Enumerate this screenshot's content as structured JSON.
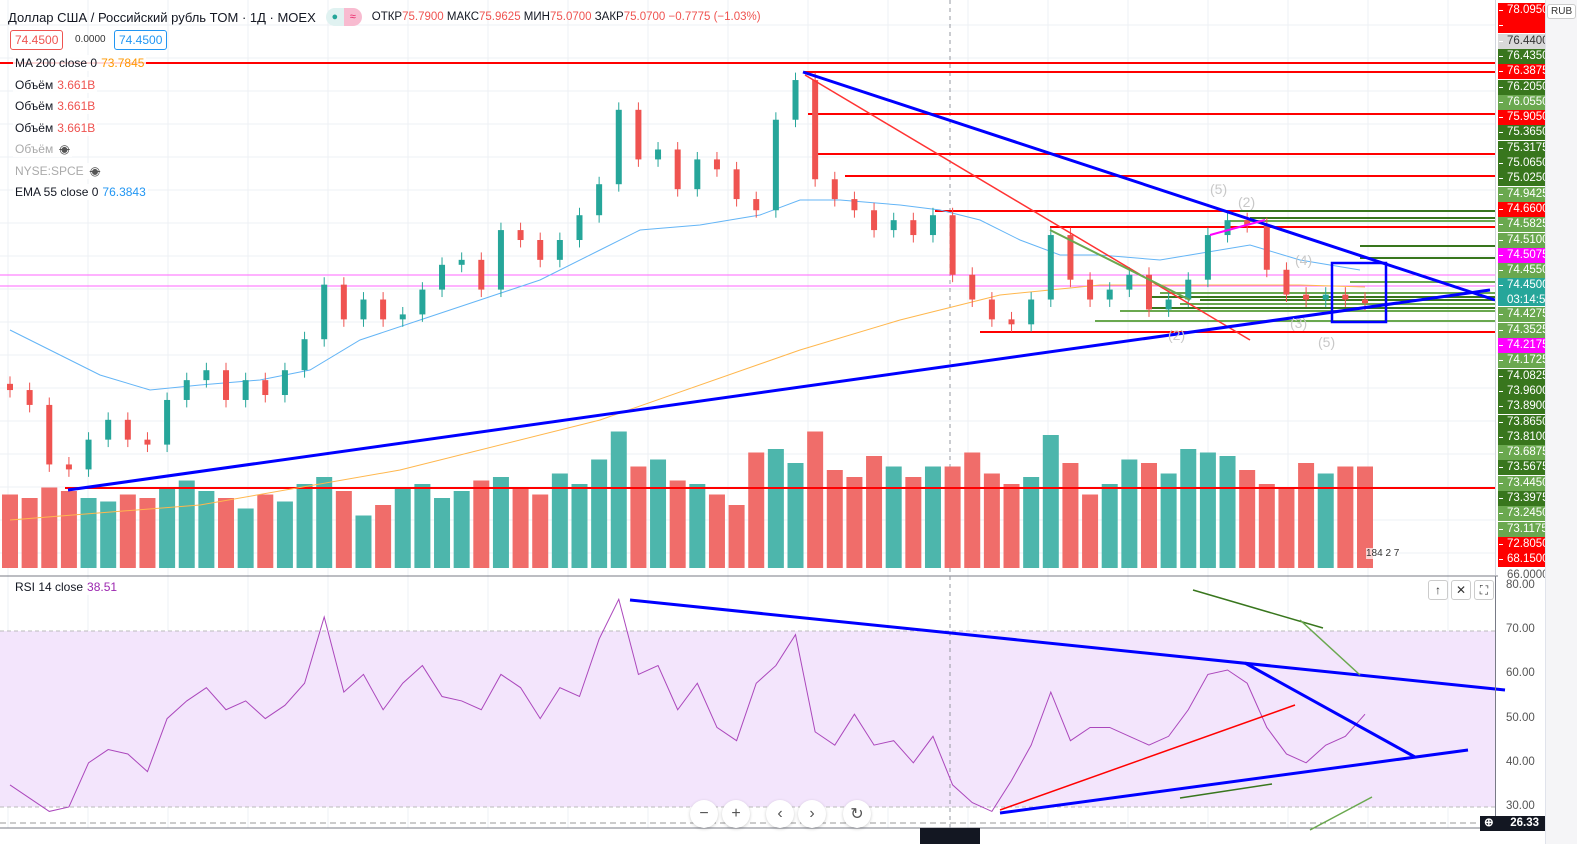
{
  "header": {
    "symbol": "Доллар США / Российский рубль TOM · 1Д · MOEX",
    "open_label": "ОТКР",
    "open": "75.7900",
    "high_label": "МАКС",
    "high": "75.9625",
    "low_label": "МИН",
    "low": "75.0700",
    "close_label": "ЗАКР",
    "close": "75.0700",
    "change": "−0.7775 (−1.03%)",
    "sell_price": "74.4500",
    "spread": "0.0000",
    "buy_price": "74.4500"
  },
  "indicators": [
    {
      "name": "MA 200 close 0",
      "value": "73.7845",
      "color": "#ff9800"
    },
    {
      "name": "Объём",
      "value": "3.661B",
      "color": "#ef5350"
    },
    {
      "name": "Объём",
      "value": "3.661B",
      "color": "#ef5350"
    },
    {
      "name": "Объём",
      "value": "3.661B",
      "color": "#ef5350"
    },
    {
      "name": "Объём",
      "value": "",
      "hidden": true
    },
    {
      "name": "NYSE:SPCE",
      "value": "",
      "hidden": true
    },
    {
      "name": "EMA 55 close 0",
      "value": "76.3843",
      "color": "#2196f3"
    }
  ],
  "currency": "RUB",
  "price_axis": [
    {
      "v": "78.0950",
      "c": "#ff0000"
    },
    {
      "v": "",
      "c": "#ff0000"
    },
    {
      "v": "76.4400",
      "c": "#d9d9d9",
      "t": "#333"
    },
    {
      "v": "76.4350",
      "c": "#38761d"
    },
    {
      "v": "76.3875",
      "c": "#ff0000"
    },
    {
      "v": "76.2050",
      "c": "#38761d"
    },
    {
      "v": "76.0550",
      "c": "#6aa84f"
    },
    {
      "v": "75.9050",
      "c": "#ff0000"
    },
    {
      "v": "75.3650",
      "c": "#38761d"
    },
    {
      "v": "75.3175",
      "c": "#38761d"
    },
    {
      "v": "75.0650",
      "c": "#38761d"
    },
    {
      "v": "75.0250",
      "c": "#38761d"
    },
    {
      "v": "74.9425",
      "c": "#6aa84f"
    },
    {
      "v": "74.6600",
      "c": "#ff0000"
    },
    {
      "v": "74.5825",
      "c": "#6aa84f"
    },
    {
      "v": "74.5100",
      "c": "#6aa84f"
    },
    {
      "v": "74.5075",
      "c": "#ff00ff"
    },
    {
      "v": "74.4550",
      "c": "#6aa84f"
    },
    {
      "v": "74.4500",
      "c": "#26a69a",
      "sub": "03:14:50"
    },
    {
      "v": "74.4275",
      "c": "#6aa84f"
    },
    {
      "v": "74.3525",
      "c": "#6aa84f"
    },
    {
      "v": "74.2175",
      "c": "#ff00ff"
    },
    {
      "v": "74.1725",
      "c": "#6aa84f"
    },
    {
      "v": "74.0825",
      "c": "#38761d"
    },
    {
      "v": "73.9600",
      "c": "#38761d"
    },
    {
      "v": "73.8900",
      "c": "#38761d"
    },
    {
      "v": "73.8650",
      "c": "#38761d"
    },
    {
      "v": "73.8100",
      "c": "#38761d"
    },
    {
      "v": "73.6875",
      "c": "#6aa84f"
    },
    {
      "v": "73.5675",
      "c": "#38761d"
    },
    {
      "v": "73.4450",
      "c": "#6aa84f"
    },
    {
      "v": "73.3975",
      "c": "#38761d"
    },
    {
      "v": "73.2450",
      "c": "#6aa84f"
    },
    {
      "v": "73.1175",
      "c": "#6aa84f"
    },
    {
      "v": "72.8050",
      "c": "#ff0000"
    },
    {
      "v": "68.1500",
      "c": "#ff0000"
    },
    {
      "v": "66.0000",
      "c": "#ffffff",
      "t": "#555"
    }
  ],
  "rsi": {
    "legend": "RSI 14 close",
    "value": "38.51",
    "axis": [
      "80.00",
      "70.00",
      "60.00",
      "50.00",
      "40.00",
      "30.00"
    ],
    "current": "26.33"
  },
  "volume_label": "184 2 7",
  "chart_data": {
    "type": "candlestick",
    "title": "Доллар США / Российский рубль TOM · 1Д · MOEX",
    "ylim": [
      72.8,
      76.5
    ],
    "closes": [
      73.75,
      73.63,
      73.15,
      73.11,
      73.35,
      73.51,
      73.35,
      73.31,
      73.67,
      73.83,
      73.91,
      73.67,
      73.83,
      73.71,
      73.91,
      74.16,
      74.6,
      74.32,
      74.48,
      74.32,
      74.36,
      74.56,
      74.76,
      74.8,
      74.56,
      75.04,
      74.96,
      74.8,
      74.96,
      75.16,
      75.41,
      76.01,
      75.61,
      75.69,
      75.37,
      75.61,
      75.53,
      75.29,
      75.2,
      75.93,
      76.25,
      75.45,
      75.29,
      75.2,
      75.04,
      75.12,
      75.0,
      75.16,
      74.68,
      74.48,
      74.32,
      74.28,
      74.48,
      75.0,
      74.64,
      74.48,
      74.56,
      74.68,
      74.4,
      74.48,
      74.64,
      75.0,
      75.12,
      75.08,
      74.72,
      74.52,
      74.48,
      74.52,
      74.48,
      74.45
    ],
    "volumes_billions": [
      2.1,
      2.0,
      2.3,
      2.2,
      2.0,
      1.9,
      2.1,
      2.0,
      2.3,
      2.5,
      2.2,
      2.0,
      1.7,
      2.1,
      1.9,
      2.4,
      2.6,
      2.2,
      1.5,
      1.8,
      2.3,
      2.4,
      2.0,
      2.2,
      2.5,
      2.6,
      2.3,
      2.1,
      2.7,
      2.4,
      3.1,
      3.9,
      2.9,
      3.1,
      2.5,
      2.4,
      2.1,
      1.8,
      3.3,
      3.4,
      3.0,
      3.9,
      2.8,
      2.6,
      3.2,
      2.9,
      2.6,
      2.9,
      2.9,
      3.3,
      2.7,
      2.4,
      2.6,
      3.8,
      3.0,
      2.1,
      2.4,
      3.1,
      3.0,
      2.7,
      3.4,
      3.3,
      3.2,
      2.8,
      2.4,
      2.3,
      3.0,
      2.7,
      2.9,
      2.9
    ],
    "rsi": [
      35,
      32,
      29,
      30,
      40,
      43,
      42,
      38,
      50,
      54,
      57,
      52,
      54,
      50,
      53,
      58,
      73,
      56,
      60,
      52,
      58,
      62,
      55,
      54,
      52,
      60,
      57,
      50,
      57,
      55,
      68,
      77,
      60,
      62,
      52,
      58,
      48,
      45,
      58,
      62,
      69,
      47,
      44,
      51,
      44,
      45,
      40,
      46,
      35,
      31,
      29,
      36,
      44,
      56,
      45,
      48,
      48,
      46,
      44,
      46,
      52,
      60,
      61,
      58,
      48,
      42,
      40,
      44,
      46,
      51
    ],
    "rsi_ylim": [
      25,
      82
    ],
    "levels": [
      76.3875,
      74.2175,
      73.3975
    ],
    "colors": {
      "up": "#26a69a",
      "down": "#ef5350",
      "rsi": "#9c27b0"
    }
  }
}
